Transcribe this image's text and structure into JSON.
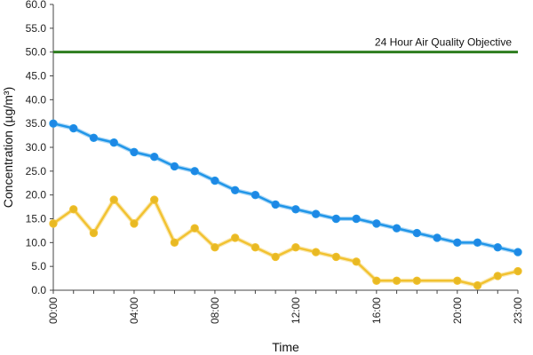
{
  "chart_data": {
    "type": "line",
    "title": "",
    "xlabel": "Time",
    "ylabel": "Concentration (µg/m³)",
    "ylim": [
      0,
      60
    ],
    "y_ticks": [
      "0.0",
      "5.0",
      "10.0",
      "15.0",
      "20.0",
      "25.0",
      "30.0",
      "35.0",
      "40.0",
      "45.0",
      "50.0",
      "55.0",
      "60.0"
    ],
    "x_tick_labels": [
      "00:00",
      "04:00",
      "08:00",
      "12:00",
      "16:00",
      "20:00",
      "23:00"
    ],
    "x_tick_hours": [
      0,
      4,
      8,
      12,
      16,
      20,
      23
    ],
    "x": [
      0,
      1,
      2,
      3,
      4,
      5,
      6,
      7,
      8,
      9,
      10,
      11,
      12,
      13,
      14,
      15,
      16,
      17,
      18,
      19,
      20,
      21,
      22,
      23
    ],
    "series": [
      {
        "color": "#2196E8",
        "marker_color": "#1E88E5",
        "values": [
          35,
          34,
          32,
          31,
          29,
          28,
          26,
          25,
          23,
          21,
          20,
          18,
          17,
          16,
          15,
          15,
          14,
          13,
          12,
          11,
          10,
          10,
          9,
          8
        ]
      },
      {
        "color": "#F2C231",
        "marker_color": "#E8B923",
        "values": [
          14,
          17,
          12,
          19,
          14,
          19,
          10,
          13,
          9,
          11,
          9,
          7,
          9,
          8,
          7,
          6,
          2,
          2,
          2,
          null,
          2,
          1,
          3,
          4
        ]
      }
    ],
    "reference_line": {
      "value": 50,
      "label": "24 Hour Air Quality Objective",
      "color": "#2E7D1F"
    },
    "grid": false,
    "legend": "none"
  }
}
